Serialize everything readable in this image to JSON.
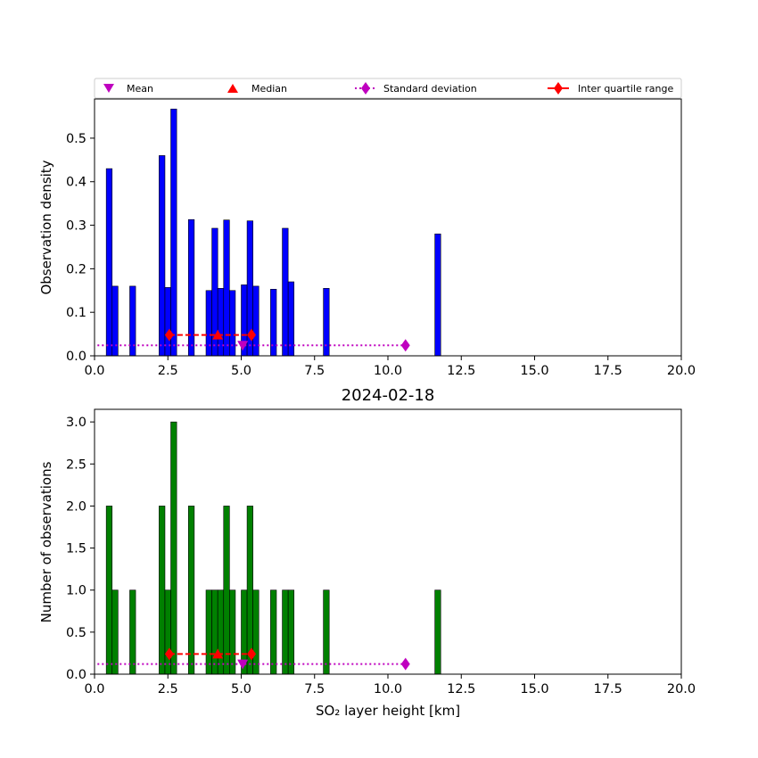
{
  "chart_data": [
    {
      "type": "bar",
      "ylabel": "Observation density",
      "xlim": [
        0,
        20
      ],
      "ylim": [
        0,
        0.59
      ],
      "xticks": [
        "0.0",
        "2.5",
        "5.0",
        "7.5",
        "10.0",
        "12.5",
        "15.0",
        "17.5",
        "20.0"
      ],
      "yticks": [
        "0.0",
        "0.1",
        "0.2",
        "0.3",
        "0.4",
        "0.5"
      ],
      "bar_color": "#0000ff",
      "bin_width": 0.2,
      "bars": [
        {
          "x": 0.5,
          "value": 0.43
        },
        {
          "x": 0.7,
          "value": 0.16
        },
        {
          "x": 1.3,
          "value": 0.16
        },
        {
          "x": 2.3,
          "value": 0.46
        },
        {
          "x": 2.5,
          "value": 0.157
        },
        {
          "x": 2.7,
          "value": 0.567
        },
        {
          "x": 3.3,
          "value": 0.313
        },
        {
          "x": 3.9,
          "value": 0.15
        },
        {
          "x": 4.1,
          "value": 0.293
        },
        {
          "x": 4.3,
          "value": 0.155
        },
        {
          "x": 4.5,
          "value": 0.312
        },
        {
          "x": 4.7,
          "value": 0.15
        },
        {
          "x": 5.1,
          "value": 0.163
        },
        {
          "x": 5.3,
          "value": 0.31
        },
        {
          "x": 5.5,
          "value": 0.16
        },
        {
          "x": 6.1,
          "value": 0.153
        },
        {
          "x": 6.5,
          "value": 0.293
        },
        {
          "x": 6.7,
          "value": 0.17
        },
        {
          "x": 7.9,
          "value": 0.155
        },
        {
          "x": 11.7,
          "value": 0.28
        }
      ],
      "mean": {
        "x": 5.05,
        "y": 0.024
      },
      "median": {
        "x": 4.2,
        "y": 0.048
      },
      "std_dev": {
        "x": [
          0.1,
          10.6
        ],
        "y": 0.024
      },
      "iqr": {
        "x": [
          2.55,
          5.35
        ],
        "y": 0.048
      }
    },
    {
      "type": "bar",
      "title": "2024-02-18",
      "xlabel": "SO₂ layer height [km]",
      "ylabel": "Number of observations",
      "xlim": [
        0,
        20
      ],
      "ylim": [
        0,
        3.15
      ],
      "xticks": [
        "0.0",
        "2.5",
        "5.0",
        "7.5",
        "10.0",
        "12.5",
        "15.0",
        "17.5",
        "20.0"
      ],
      "yticks": [
        "0.0",
        "0.5",
        "1.0",
        "1.5",
        "2.0",
        "2.5",
        "3.0"
      ],
      "bar_color": "#008000",
      "bin_width": 0.2,
      "bars": [
        {
          "x": 0.5,
          "value": 2
        },
        {
          "x": 0.7,
          "value": 1
        },
        {
          "x": 1.3,
          "value": 1
        },
        {
          "x": 2.3,
          "value": 2
        },
        {
          "x": 2.5,
          "value": 1
        },
        {
          "x": 2.7,
          "value": 3
        },
        {
          "x": 3.3,
          "value": 2
        },
        {
          "x": 3.9,
          "value": 1
        },
        {
          "x": 4.1,
          "value": 1
        },
        {
          "x": 4.3,
          "value": 1
        },
        {
          "x": 4.5,
          "value": 2
        },
        {
          "x": 4.7,
          "value": 1
        },
        {
          "x": 5.1,
          "value": 1
        },
        {
          "x": 5.3,
          "value": 2
        },
        {
          "x": 5.5,
          "value": 1
        },
        {
          "x": 6.1,
          "value": 1
        },
        {
          "x": 6.5,
          "value": 1
        },
        {
          "x": 6.7,
          "value": 1
        },
        {
          "x": 7.9,
          "value": 1
        },
        {
          "x": 11.7,
          "value": 1
        }
      ],
      "mean": {
        "x": 5.05,
        "y": 0.12
      },
      "median": {
        "x": 4.2,
        "y": 0.24
      },
      "std_dev": {
        "x": [
          0.1,
          10.6
        ],
        "y": 0.12
      },
      "iqr": {
        "x": [
          2.55,
          5.35
        ],
        "y": 0.24
      }
    }
  ],
  "legend": {
    "placement": "top",
    "items": [
      {
        "label": "Mean",
        "marker": "triangle-down",
        "color": "#bf00bf"
      },
      {
        "label": "Median",
        "marker": "triangle-up",
        "color": "#ff0000"
      },
      {
        "label": "Standard deviation",
        "marker": "diamond-dotted-line",
        "color": "#bf00bf"
      },
      {
        "label": "Inter quartile range",
        "marker": "diamond-dashed-line",
        "color": "#ff0000"
      }
    ]
  }
}
